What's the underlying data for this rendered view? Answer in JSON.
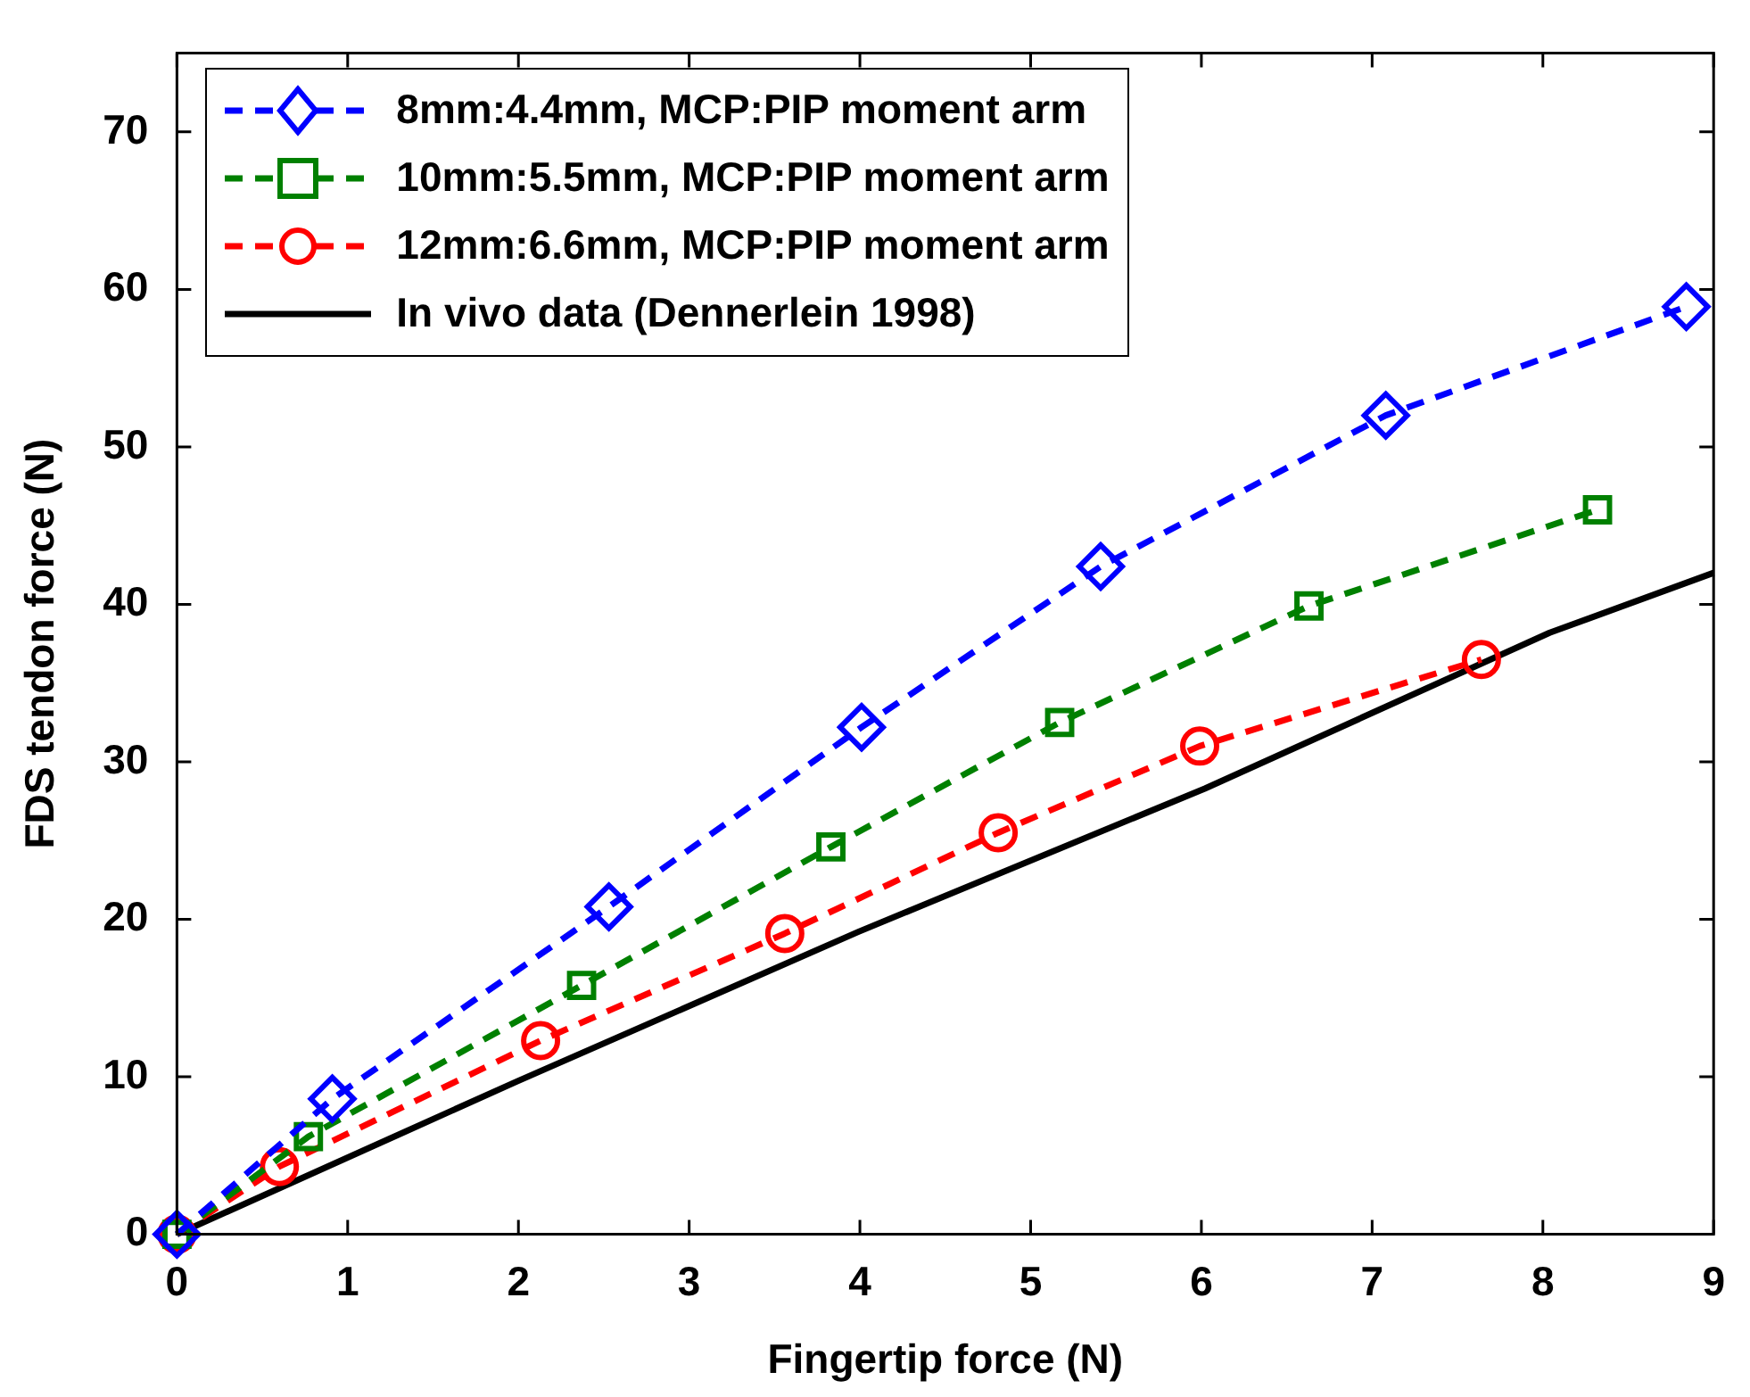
{
  "chart_data": {
    "type": "line",
    "xlabel": "Fingertip force (N)",
    "ylabel": "FDS tendon force (N)",
    "xlim": [
      0,
      9
    ],
    "xticks": [
      0,
      1,
      2,
      3,
      4,
      5,
      6,
      7,
      8,
      9
    ],
    "ylim": [
      0,
      75
    ],
    "yticks": [
      0,
      10,
      20,
      30,
      40,
      50,
      60,
      70
    ],
    "grid": false,
    "legend": "top left",
    "series": [
      {
        "name": "8mm:4.4mm, MCP:PIP moment arm",
        "color": "#0000ff",
        "marker": "diamond",
        "line_style": "dashed",
        "x": [
          0,
          0.91,
          2.53,
          4.01,
          5.41,
          7.08,
          8.84
        ],
        "values": [
          0,
          8.6,
          20.8,
          32.2,
          42.4,
          52,
          58.9
        ]
      },
      {
        "name": "10mm:5.5mm, MCP:PIP moment arm",
        "color": "#008000",
        "marker": "square",
        "line_style": "dashed",
        "x": [
          0,
          0.77,
          2.37,
          3.83,
          5.17,
          6.63,
          8.32
        ],
        "values": [
          0,
          6.2,
          15.8,
          24.6,
          32.5,
          39.9,
          46
        ]
      },
      {
        "name": "12mm:6.6mm, MCP:PIP moment arm",
        "color": "#ff0000",
        "marker": "circle",
        "line_style": "dashed",
        "x": [
          0,
          0.6,
          2.13,
          3.56,
          4.81,
          5.99,
          7.64
        ],
        "values": [
          0,
          4.3,
          12.3,
          19.1,
          25.5,
          31,
          36.5
        ]
      },
      {
        "name": "In vivo data (Dennerlein 1998)",
        "color": "#000000",
        "marker": "none",
        "line_style": "solid",
        "x": [
          0,
          1.99,
          3.99,
          6.02,
          8.04,
          9
        ],
        "values": [
          0,
          9.7,
          19.2,
          28.3,
          38.2,
          42
        ]
      }
    ]
  }
}
